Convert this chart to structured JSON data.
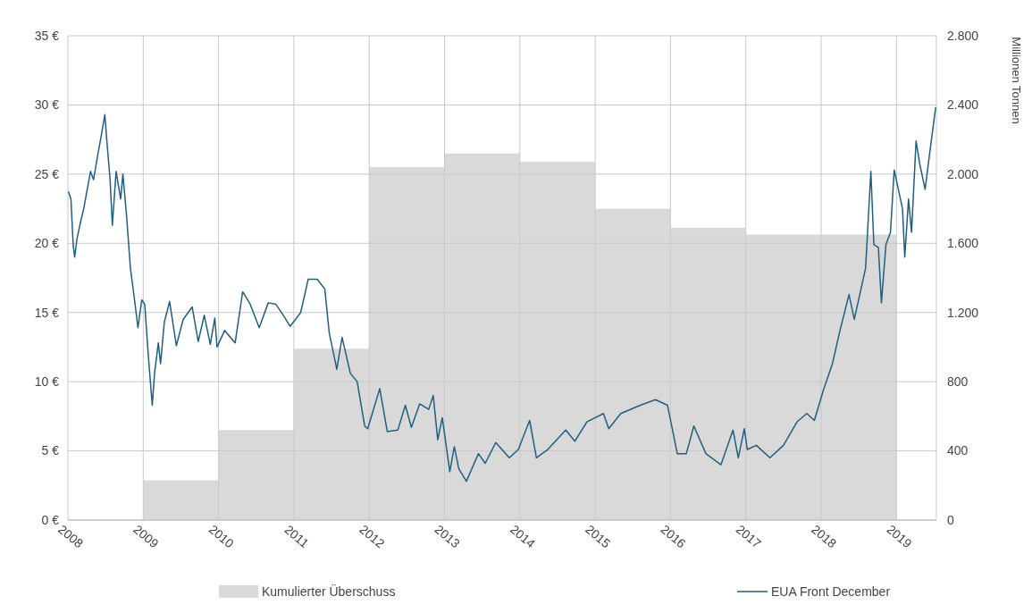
{
  "chart_data": {
    "type": "line",
    "xlim": [
      2008,
      2019.53
    ],
    "xticks": [
      2008,
      2009,
      2010,
      2011,
      2012,
      2013,
      2014,
      2015,
      2016,
      2017,
      2018,
      2019
    ],
    "ylim": [
      0,
      35
    ],
    "yticks": [
      {
        "value": 0,
        "label": "0 €"
      },
      {
        "value": 5,
        "label": "5 €"
      },
      {
        "value": 10,
        "label": "10 €"
      },
      {
        "value": 15,
        "label": "15 €"
      },
      {
        "value": 20,
        "label": "20 €"
      },
      {
        "value": 25,
        "label": "25 €"
      },
      {
        "value": 30,
        "label": "30 €"
      },
      {
        "value": 35,
        "label": "35 €"
      }
    ],
    "y2lim": [
      0,
      2800
    ],
    "y2ticks": [
      0,
      400,
      800,
      {
        "value": 1200,
        "label": "1.200"
      },
      {
        "value": 1600,
        "label": "1.600"
      },
      {
        "value": 2000,
        "label": "2.000"
      },
      {
        "value": 2400,
        "label": "2.400"
      },
      {
        "value": 2800,
        "label": "2.800"
      }
    ],
    "y2label": "Millionen Tonnen",
    "grid": true,
    "legend": "bottom",
    "series": [
      {
        "name": "Kumulierter Überschuss",
        "type": "area",
        "axis": "y2",
        "color": "#d9d9d9",
        "x": [
          2009,
          2010,
          2011,
          2012,
          2013,
          2014,
          2015,
          2016,
          2017,
          2018,
          2019
        ],
        "values": [
          230,
          520,
          990,
          2040,
          2120,
          2070,
          1800,
          1690,
          1650,
          1650,
          0
        ]
      },
      {
        "name": "EUA Front December",
        "color": "#1f5f80",
        "x": [
          2008.01,
          2008.04,
          2008.07,
          2008.09,
          2008.12,
          2008.17,
          2008.21,
          2008.26,
          2008.3,
          2008.34,
          2008.4,
          2008.44,
          2008.49,
          2008.52,
          2008.56,
          2008.59,
          2008.64,
          2008.7,
          2008.73,
          2008.78,
          2008.83,
          2008.88,
          2008.93,
          2008.98,
          2009.02,
          2009.07,
          2009.12,
          2009.15,
          2009.2,
          2009.23,
          2009.28,
          2009.35,
          2009.44,
          2009.53,
          2009.65,
          2009.73,
          2009.81,
          2009.89,
          2009.95,
          2009.98,
          2010.08,
          2010.22,
          2010.32,
          2010.42,
          2010.54,
          2010.66,
          2010.76,
          2010.86,
          2010.95,
          2011.09,
          2011.19,
          2011.31,
          2011.41,
          2011.47,
          2011.57,
          2011.64,
          2011.75,
          2011.84,
          2011.94,
          2011.98,
          2012.14,
          2012.24,
          2012.38,
          2012.48,
          2012.56,
          2012.67,
          2012.79,
          2012.85,
          2012.91,
          2012.97,
          2013.07,
          2013.13,
          2013.19,
          2013.29,
          2013.45,
          2013.54,
          2013.68,
          2013.86,
          2013.98,
          2014.13,
          2014.22,
          2014.37,
          2014.61,
          2014.73,
          2014.89,
          2015.11,
          2015.18,
          2015.34,
          2015.6,
          2015.8,
          2015.96,
          2016.09,
          2016.21,
          2016.31,
          2016.47,
          2016.67,
          2016.83,
          2016.9,
          2016.98,
          2017.02,
          2017.14,
          2017.32,
          2017.5,
          2017.68,
          2017.81,
          2017.91,
          2018.03,
          2018.15,
          2018.25,
          2018.37,
          2018.44,
          2018.59,
          2018.62,
          2018.66,
          2018.7,
          2018.76,
          2018.8,
          2018.86,
          2018.92,
          2018.97,
          2019.08,
          2019.11,
          2019.16,
          2019.2,
          2019.26,
          2019.31,
          2019.38,
          2019.45,
          2019.52
        ],
        "values": [
          23.7,
          23.2,
          19.9,
          19,
          20.3,
          21.6,
          22.5,
          24,
          25.2,
          24.6,
          26.5,
          27.7,
          29.3,
          27.2,
          24.6,
          21.3,
          25.2,
          23.2,
          25,
          21.9,
          18.2,
          16.1,
          13.9,
          15.9,
          15.6,
          11.7,
          8.3,
          10.6,
          12.8,
          11.3,
          14.3,
          15.8,
          12.6,
          14.5,
          15.4,
          12.9,
          14.8,
          12.7,
          14.6,
          12.5,
          13.7,
          12.8,
          16.5,
          15.6,
          13.9,
          15.7,
          15.6,
          14.8,
          14,
          15,
          17.4,
          17.4,
          16.7,
          13.5,
          10.9,
          13.2,
          10.6,
          10,
          6.8,
          6.6,
          9.5,
          6.4,
          6.5,
          8.3,
          6.7,
          8.4,
          8,
          9,
          5.8,
          7.4,
          3.5,
          5.3,
          3.7,
          2.8,
          4.8,
          4.1,
          5.6,
          4.5,
          5.1,
          7.2,
          4.5,
          5.1,
          6.5,
          5.7,
          7.1,
          7.7,
          6.6,
          7.7,
          8.3,
          8.7,
          8.3,
          4.8,
          4.8,
          6.8,
          4.8,
          4,
          6.5,
          4.5,
          6.6,
          5.1,
          5.4,
          4.5,
          5.4,
          7.1,
          7.7,
          7.2,
          9.4,
          11.3,
          13.7,
          16.3,
          14.5,
          18.2,
          21.2,
          25.2,
          19.9,
          19.7,
          15.7,
          19.9,
          20.8,
          25.3,
          22.5,
          19,
          23.2,
          20.8,
          27.4,
          25.7,
          23.9,
          26.9,
          29.8
        ]
      }
    ]
  }
}
